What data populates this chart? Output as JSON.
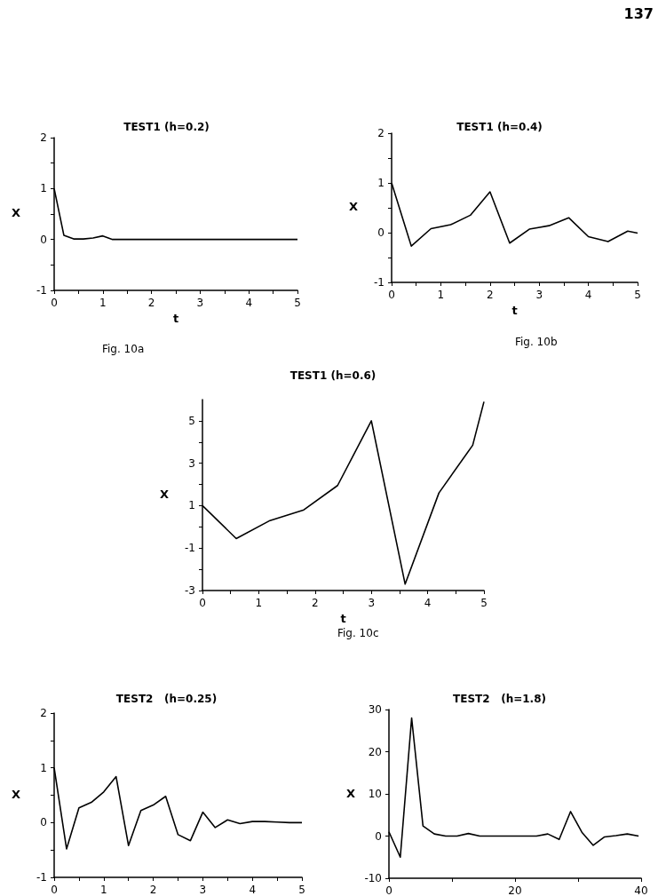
{
  "chart_data": [
    {
      "type": "line",
      "title": "TEST1 (h=0.2)",
      "xlabel": "t",
      "ylabel": "X",
      "annotations": [
        "Fig. 10a",
        "137"
      ],
      "marker": "none",
      "line_style": "solid",
      "x": [
        0,
        0.2,
        0.4,
        0.6,
        0.8,
        1.0,
        1.2,
        1.4,
        1.6,
        1.8,
        2.0,
        2.2,
        2.4,
        2.6,
        2.8,
        3.0,
        3.2,
        3.4,
        3.6,
        3.8,
        4.0,
        4.2,
        4.4,
        4.6,
        4.8,
        5.0
      ],
      "series": [
        {
          "color": "#000000",
          "values": [
            1,
            0.08,
            0.01,
            0.01,
            0.03,
            0.07,
            0,
            0,
            0,
            0,
            0,
            0,
            0,
            0,
            0,
            0,
            0,
            0,
            0,
            0,
            0,
            0,
            0,
            0,
            0,
            0
          ]
        }
      ],
      "xlim": [
        0,
        5
      ],
      "xticks": [
        0,
        {
          "value": 0.5,
          "label": null
        },
        1,
        {
          "value": 1.5,
          "label": null
        },
        2,
        {
          "value": 2.5,
          "label": null
        },
        3,
        {
          "value": 3.5,
          "label": null
        },
        4,
        {
          "value": 4.5,
          "label": null
        },
        5
      ],
      "ylim": [
        -1,
        2
      ],
      "yticks": [
        -1,
        {
          "value": -0.5,
          "label": null
        },
        0,
        {
          "value": 0.5,
          "label": null
        },
        1,
        {
          "value": 1.5,
          "label": null
        },
        2
      ]
    },
    {
      "type": "line",
      "title": "TEST1 (h=0.4)",
      "xlabel": "t",
      "ylabel": "X",
      "annotations": [
        "Fig. 10b"
      ],
      "marker": "none",
      "line_style": "solid",
      "x": [
        0,
        0.4,
        0.8,
        1.2,
        1.6,
        2.0,
        2.4,
        2.8,
        3.2,
        3.6,
        4.0,
        4.4,
        4.8,
        5.0
      ],
      "series": [
        {
          "color": "#000000",
          "values": [
            1,
            -0.27,
            0.08,
            0.16,
            0.35,
            0.82,
            -0.21,
            0.07,
            0.14,
            0.3,
            -0.08,
            -0.18,
            0.03,
            -0.01
          ]
        }
      ],
      "xlim": [
        0,
        5
      ],
      "xticks": [
        0,
        {
          "value": 0.5,
          "label": null
        },
        1,
        {
          "value": 1.5,
          "label": null
        },
        2,
        {
          "value": 2.5,
          "label": null
        },
        3,
        {
          "value": 3.5,
          "label": null
        },
        4,
        {
          "value": 4.5,
          "label": null
        },
        5
      ],
      "ylim": [
        -1,
        2
      ],
      "yticks": [
        -1,
        {
          "value": -0.5,
          "label": null
        },
        0,
        {
          "value": 0.5,
          "label": null
        },
        1,
        {
          "value": 1.5,
          "label": null
        },
        2
      ]
    },
    {
      "type": "line",
      "title": "TEST1 (h=0.6)",
      "xlabel": "t",
      "ylabel": "X",
      "annotations": [
        "Fig. 10c"
      ],
      "marker": "none",
      "line_style": "solid",
      "x": [
        0,
        0.6,
        1.2,
        1.8,
        2.4,
        3.0,
        3.6,
        4.2,
        4.8,
        5.0
      ],
      "series": [
        {
          "color": "#000000",
          "values": [
            1,
            -0.55,
            0.3,
            0.8,
            1.95,
            5.0,
            -2.7,
            1.6,
            3.85,
            5.9
          ]
        }
      ],
      "xlim": [
        0,
        5
      ],
      "xticks": [
        0,
        {
          "value": 0.5,
          "label": null
        },
        1,
        {
          "value": 1.5,
          "label": null
        },
        2,
        {
          "value": 2.5,
          "label": null
        },
        3,
        {
          "value": 3.5,
          "label": null
        },
        4,
        {
          "value": 4.5,
          "label": null
        },
        5
      ],
      "ylim": [
        -3,
        6
      ],
      "yticks": [
        -3,
        {
          "value": -2,
          "label": null
        },
        -1,
        {
          "value": 0,
          "label": null
        },
        1,
        {
          "value": 2,
          "label": null
        },
        3,
        {
          "value": 4,
          "label": null
        },
        5
      ]
    },
    {
      "type": "line",
      "title": "TEST2   (h=0.25)",
      "ylabel": "X",
      "marker": "none",
      "line_style": "solid",
      "x": [
        0,
        0.25,
        0.5,
        0.75,
        1.0,
        1.25,
        1.5,
        1.75,
        2.0,
        2.25,
        2.5,
        2.75,
        3.0,
        3.25,
        3.5,
        3.75,
        4.0,
        4.25,
        4.5,
        4.75,
        5.0
      ],
      "series": [
        {
          "color": "#000000",
          "values": [
            1,
            -0.48,
            0.27,
            0.37,
            0.56,
            0.84,
            -0.42,
            0.22,
            0.32,
            0.48,
            -0.22,
            -0.33,
            0.19,
            -0.09,
            0.05,
            -0.02,
            0.02,
            0.02,
            0.01,
            0,
            0
          ]
        }
      ],
      "xlim": [
        0,
        5
      ],
      "xticks": [
        0,
        {
          "value": 0.5,
          "label": null
        },
        1,
        {
          "value": 1.5,
          "label": null
        },
        2,
        {
          "value": 2.5,
          "label": null
        },
        3,
        {
          "value": 3.5,
          "label": null
        },
        4,
        {
          "value": 4.5,
          "label": null
        },
        5
      ],
      "ylim": [
        -1,
        2
      ],
      "yticks": [
        -1,
        {
          "value": -0.5,
          "label": null
        },
        0,
        {
          "value": 0.5,
          "label": null
        },
        1,
        {
          "value": 1.5,
          "label": null
        },
        2
      ]
    },
    {
      "type": "line",
      "title": "TEST2   (h=1.8)",
      "ylabel": "X",
      "marker": "none",
      "line_style": "solid",
      "x": [
        0,
        1.8,
        3.6,
        5.4,
        7.2,
        9.0,
        10.8,
        12.6,
        14.4,
        16.2,
        18.0,
        19.8,
        21.6,
        23.4,
        25.2,
        27.0,
        28.8,
        30.6,
        32.4,
        34.2,
        36.0,
        37.8,
        39.6
      ],
      "series": [
        {
          "color": "#000000",
          "values": [
            1,
            -5,
            28,
            2.4,
            0.5,
            0,
            0,
            0.6,
            0,
            0,
            0,
            0,
            0,
            0,
            0.5,
            -0.8,
            5.8,
            0.9,
            -2.2,
            -0.2,
            0.1,
            0.5,
            0
          ]
        }
      ],
      "xlim": [
        0,
        40
      ],
      "xticks": [
        0,
        {
          "value": 10,
          "label": null
        },
        20,
        {
          "value": 30,
          "label": null
        },
        40
      ],
      "ylim": [
        -10,
        30
      ],
      "yticks": [
        -10,
        0,
        10,
        20,
        30
      ]
    }
  ]
}
